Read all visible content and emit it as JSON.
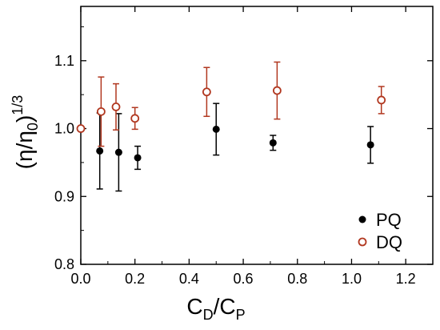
{
  "chart_data": {
    "type": "scatter",
    "xlim": [
      0.0,
      1.3
    ],
    "ylim": [
      0.8,
      1.18
    ],
    "x_ticks": [
      "0.0",
      "0.2",
      "0.4",
      "0.6",
      "0.8",
      "1.0",
      "1.2"
    ],
    "y_ticks": [
      "0.8",
      "0.9",
      "1.0",
      "1.1"
    ],
    "x_tick_values": [
      0.0,
      0.2,
      0.4,
      0.6,
      0.8,
      1.0,
      1.2
    ],
    "y_tick_values": [
      0.8,
      0.9,
      1.0,
      1.1
    ],
    "xlabel": {
      "base1": "C",
      "sub1": "D",
      "slash": "/",
      "base2": "C",
      "sub2": "P"
    },
    "ylabel": {
      "open": "(",
      "eta": "η",
      "slash": "/",
      "eta0": "η",
      "sub0": "0",
      "close": ")",
      "exponent": "1/3"
    },
    "grid": false,
    "legend_position": "bottom-right",
    "series": [
      {
        "name": "PQ",
        "marker": "filled-circle",
        "color": "#000000",
        "points": [
          {
            "x": 0.07,
            "y": 0.967,
            "err_low": 0.056,
            "err_high": 0.056
          },
          {
            "x": 0.14,
            "y": 0.965,
            "err_low": 0.057,
            "err_high": 0.057
          },
          {
            "x": 0.21,
            "y": 0.957,
            "err_low": 0.017,
            "err_high": 0.017
          },
          {
            "x": 0.5,
            "y": 0.999,
            "err_low": 0.038,
            "err_high": 0.038
          },
          {
            "x": 0.71,
            "y": 0.979,
            "err_low": 0.011,
            "err_high": 0.011
          },
          {
            "x": 1.07,
            "y": 0.976,
            "err_low": 0.027,
            "err_high": 0.027
          }
        ]
      },
      {
        "name": "DQ",
        "marker": "open-circle",
        "color": "#b1371f",
        "points": [
          {
            "x": 0.0,
            "y": 1.0,
            "err_low": 0.0,
            "err_high": 0.0
          },
          {
            "x": 0.075,
            "y": 1.025,
            "err_low": 0.051,
            "err_high": 0.051
          },
          {
            "x": 0.13,
            "y": 1.032,
            "err_low": 0.034,
            "err_high": 0.034
          },
          {
            "x": 0.2,
            "y": 1.015,
            "err_low": 0.016,
            "err_high": 0.016
          },
          {
            "x": 0.465,
            "y": 1.054,
            "err_low": 0.036,
            "err_high": 0.036
          },
          {
            "x": 0.725,
            "y": 1.056,
            "err_low": 0.042,
            "err_high": 0.042
          },
          {
            "x": 1.11,
            "y": 1.042,
            "err_low": 0.02,
            "err_high": 0.02
          }
        ]
      }
    ]
  }
}
